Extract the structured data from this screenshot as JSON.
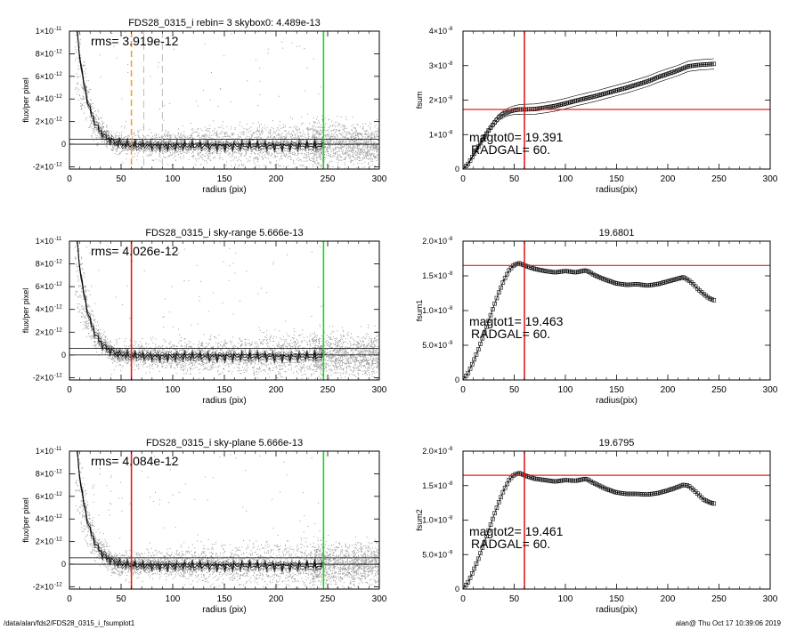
{
  "footer": {
    "left": "/data/alan/fds2/FDS28_0315_i_fsumplot1",
    "right": "alan@  Thu Oct 17 10:39:06 2019"
  },
  "colors": {
    "scatter": "#9a9a9a",
    "profile": "#000000",
    "red": "#e0201a",
    "green": "#19d419",
    "orange": "#f0a040",
    "gray_dash": "#bdbdbd"
  },
  "chart_data": [
    {
      "type": "scatter",
      "title": "FDS28_0315_i rebin= 3    skybox0:  4.489e-13",
      "xlabel": "radius (pix)",
      "ylabel": "flux/per pixel",
      "xlim": [
        0,
        300
      ],
      "ylim": [
        -2.2e-12,
        1e-11
      ],
      "xticks": [
        "0",
        "50",
        "100",
        "150",
        "200",
        "250",
        "300"
      ],
      "yticks": [
        {
          "v": 1e-11,
          "b": "1×10",
          "e": "-11"
        },
        {
          "v": 8e-12,
          "b": "8×10",
          "e": "-12"
        },
        {
          "v": 6e-12,
          "b": "6×10",
          "e": "-12"
        },
        {
          "v": 4e-12,
          "b": "4×10",
          "e": "-12"
        },
        {
          "v": 2e-12,
          "b": "2×10",
          "e": "-12"
        },
        {
          "v": 0,
          "b": "0",
          "e": ""
        },
        {
          "v": -2e-12,
          "b": "-2×10",
          "e": "-12"
        }
      ],
      "annotation": "rms= 3.919e-12",
      "rms": 3.919e-12,
      "hlines": [
        0,
        4.489e-13
      ],
      "vlines": [
        {
          "x": 60,
          "color": "orange",
          "dash": true
        },
        {
          "x": 72,
          "color": "gray_dash",
          "dash": true
        },
        {
          "x": 90,
          "color": "gray_dash",
          "dash": true
        },
        {
          "x": 246,
          "color": "green",
          "dash": false
        }
      ],
      "seed": 11
    },
    {
      "type": "line",
      "title": "",
      "xlabel": "radius(pix)",
      "ylabel": "fsum",
      "xlim": [
        0,
        300
      ],
      "ylim": [
        0,
        4e-08
      ],
      "xticks": [
        "0",
        "50",
        "100",
        "150",
        "200",
        "250",
        "300"
      ],
      "yticks": [
        {
          "v": 4e-08,
          "b": "4×10",
          "e": "-8"
        },
        {
          "v": 3e-08,
          "b": "3×10",
          "e": "-8"
        },
        {
          "v": 2e-08,
          "b": "2×10",
          "e": "-8"
        },
        {
          "v": 1e-08,
          "b": "1×10",
          "e": "-8"
        },
        {
          "v": 0,
          "b": "0",
          "e": ""
        }
      ],
      "annotation_mag": "magtot0=  19.391",
      "annotation_rad": "RADGAL=     60.",
      "vline": 60,
      "hline": 1.73e-08,
      "curve": [
        [
          0,
          0
        ],
        [
          5,
          1.5e-09
        ],
        [
          10,
          4e-09
        ],
        [
          15,
          6.5e-09
        ],
        [
          20,
          9e-09
        ],
        [
          25,
          1.12e-08
        ],
        [
          30,
          1.32e-08
        ],
        [
          35,
          1.5e-08
        ],
        [
          40,
          1.6e-08
        ],
        [
          45,
          1.67e-08
        ],
        [
          50,
          1.71e-08
        ],
        [
          55,
          1.73e-08
        ],
        [
          60,
          1.73e-08
        ],
        [
          70,
          1.74e-08
        ],
        [
          80,
          1.78e-08
        ],
        [
          90,
          1.83e-08
        ],
        [
          100,
          1.9e-08
        ],
        [
          110,
          1.98e-08
        ],
        [
          120,
          2.05e-08
        ],
        [
          130,
          2.12e-08
        ],
        [
          140,
          2.2e-08
        ],
        [
          150,
          2.28e-08
        ],
        [
          160,
          2.36e-08
        ],
        [
          170,
          2.45e-08
        ],
        [
          180,
          2.54e-08
        ],
        [
          190,
          2.66e-08
        ],
        [
          200,
          2.76e-08
        ],
        [
          210,
          2.86e-08
        ],
        [
          220,
          2.98e-08
        ],
        [
          230,
          3.02e-08
        ],
        [
          240,
          3.04e-08
        ],
        [
          245,
          3.05e-08
        ]
      ],
      "spread": 1.5e-09
    },
    {
      "type": "scatter",
      "title": "FDS28_0315_i sky-range  5.666e-13",
      "xlabel": "radius (pix)",
      "ylabel": "flux/per pixel",
      "xlim": [
        0,
        300
      ],
      "ylim": [
        -2.2e-12,
        1e-11
      ],
      "xticks": [
        "0",
        "50",
        "100",
        "150",
        "200",
        "250",
        "300"
      ],
      "yticks": [
        {
          "v": 1e-11,
          "b": "1×10",
          "e": "-11"
        },
        {
          "v": 8e-12,
          "b": "8×10",
          "e": "-12"
        },
        {
          "v": 6e-12,
          "b": "6×10",
          "e": "-12"
        },
        {
          "v": 4e-12,
          "b": "4×10",
          "e": "-12"
        },
        {
          "v": 2e-12,
          "b": "2×10",
          "e": "-12"
        },
        {
          "v": 0,
          "b": "0",
          "e": ""
        },
        {
          "v": -2e-12,
          "b": "-2×10",
          "e": "-12"
        }
      ],
      "annotation": "rms= 4.026e-12",
      "rms": 4.026e-12,
      "hlines": [
        0,
        5.666e-13
      ],
      "vlines": [
        {
          "x": 60,
          "color": "red",
          "dash": false
        },
        {
          "x": 246,
          "color": "green",
          "dash": false
        }
      ],
      "seed": 23
    },
    {
      "type": "line",
      "title": "19.6801",
      "xlabel": "radius(pix)",
      "ylabel": "fsum1",
      "xlim": [
        0,
        300
      ],
      "ylim": [
        0,
        2e-08
      ],
      "xticks": [
        "0",
        "50",
        "100",
        "150",
        "200",
        "250",
        "300"
      ],
      "yticks": [
        {
          "v": 2e-08,
          "b": "2.0×10",
          "e": "-8"
        },
        {
          "v": 1.5e-08,
          "b": "1.5×10",
          "e": "-8"
        },
        {
          "v": 1e-08,
          "b": "1.0×10",
          "e": "-8"
        },
        {
          "v": 5e-09,
          "b": "5.0×10",
          "e": "-9"
        },
        {
          "v": 0,
          "b": "0",
          "e": ""
        }
      ],
      "annotation_mag": "magtot1=  19.463",
      "annotation_rad": "RADGAL=     60.",
      "vline": 60,
      "hline": 1.65e-08,
      "curve": [
        [
          0,
          0
        ],
        [
          5,
          1e-09
        ],
        [
          10,
          2.6e-09
        ],
        [
          15,
          4.4e-09
        ],
        [
          20,
          6.4e-09
        ],
        [
          25,
          8.5e-09
        ],
        [
          30,
          1.06e-08
        ],
        [
          35,
          1.26e-08
        ],
        [
          40,
          1.44e-08
        ],
        [
          45,
          1.58e-08
        ],
        [
          50,
          1.66e-08
        ],
        [
          55,
          1.68e-08
        ],
        [
          60,
          1.65e-08
        ],
        [
          70,
          1.6e-08
        ],
        [
          80,
          1.57e-08
        ],
        [
          90,
          1.55e-08
        ],
        [
          100,
          1.57e-08
        ],
        [
          110,
          1.55e-08
        ],
        [
          120,
          1.58e-08
        ],
        [
          130,
          1.5e-08
        ],
        [
          140,
          1.44e-08
        ],
        [
          150,
          1.39e-08
        ],
        [
          160,
          1.37e-08
        ],
        [
          170,
          1.38e-08
        ],
        [
          180,
          1.36e-08
        ],
        [
          190,
          1.38e-08
        ],
        [
          200,
          1.42e-08
        ],
        [
          210,
          1.46e-08
        ],
        [
          215,
          1.48e-08
        ],
        [
          220,
          1.44e-08
        ],
        [
          225,
          1.38e-08
        ],
        [
          230,
          1.3e-08
        ],
        [
          235,
          1.24e-08
        ],
        [
          240,
          1.18e-08
        ],
        [
          245,
          1.15e-08
        ]
      ],
      "spread": 0
    },
    {
      "type": "scatter",
      "title": "FDS28_0315_i sky-plane  5.666e-13",
      "xlabel": "radius (pix)",
      "ylabel": "flux/per pixel",
      "xlim": [
        0,
        300
      ],
      "ylim": [
        -2.2e-12,
        1e-11
      ],
      "xticks": [
        "0",
        "50",
        "100",
        "150",
        "200",
        "250",
        "300"
      ],
      "yticks": [
        {
          "v": 1e-11,
          "b": "1×10",
          "e": "-11"
        },
        {
          "v": 8e-12,
          "b": "8×10",
          "e": "-12"
        },
        {
          "v": 6e-12,
          "b": "6×10",
          "e": "-12"
        },
        {
          "v": 4e-12,
          "b": "4×10",
          "e": "-12"
        },
        {
          "v": 2e-12,
          "b": "2×10",
          "e": "-12"
        },
        {
          "v": 0,
          "b": "0",
          "e": ""
        },
        {
          "v": -2e-12,
          "b": "-2×10",
          "e": "-12"
        }
      ],
      "annotation": "rms= 4.084e-12",
      "rms": 4.084e-12,
      "hlines": [
        0,
        5.666e-13
      ],
      "vlines": [
        {
          "x": 60,
          "color": "red",
          "dash": false
        },
        {
          "x": 246,
          "color": "green",
          "dash": false
        }
      ],
      "seed": 37
    },
    {
      "type": "line",
      "title": "19.6795",
      "xlabel": "radius(pix)",
      "ylabel": "fsum2",
      "xlim": [
        0,
        300
      ],
      "ylim": [
        0,
        2e-08
      ],
      "xticks": [
        "0",
        "50",
        "100",
        "150",
        "200",
        "250",
        "300"
      ],
      "yticks": [
        {
          "v": 2e-08,
          "b": "2.0×10",
          "e": "-8"
        },
        {
          "v": 1.5e-08,
          "b": "1.5×10",
          "e": "-8"
        },
        {
          "v": 1e-08,
          "b": "1.0×10",
          "e": "-8"
        },
        {
          "v": 5e-09,
          "b": "5.0×10",
          "e": "-9"
        },
        {
          "v": 0,
          "b": "0",
          "e": ""
        }
      ],
      "annotation_mag": "magtot2=  19.461",
      "annotation_rad": "RADGAL=     60.",
      "vline": 60,
      "hline": 1.65e-08,
      "curve": [
        [
          0,
          0
        ],
        [
          5,
          1e-09
        ],
        [
          10,
          2.6e-09
        ],
        [
          15,
          4.4e-09
        ],
        [
          20,
          6.4e-09
        ],
        [
          25,
          8.5e-09
        ],
        [
          30,
          1.06e-08
        ],
        [
          35,
          1.26e-08
        ],
        [
          40,
          1.44e-08
        ],
        [
          45,
          1.58e-08
        ],
        [
          50,
          1.66e-08
        ],
        [
          55,
          1.68e-08
        ],
        [
          60,
          1.65e-08
        ],
        [
          70,
          1.6e-08
        ],
        [
          80,
          1.58e-08
        ],
        [
          90,
          1.56e-08
        ],
        [
          100,
          1.58e-08
        ],
        [
          110,
          1.57e-08
        ],
        [
          120,
          1.6e-08
        ],
        [
          130,
          1.52e-08
        ],
        [
          140,
          1.45e-08
        ],
        [
          150,
          1.4e-08
        ],
        [
          160,
          1.38e-08
        ],
        [
          170,
          1.38e-08
        ],
        [
          180,
          1.37e-08
        ],
        [
          190,
          1.39e-08
        ],
        [
          200,
          1.43e-08
        ],
        [
          210,
          1.48e-08
        ],
        [
          215,
          1.51e-08
        ],
        [
          220,
          1.5e-08
        ],
        [
          225,
          1.44e-08
        ],
        [
          230,
          1.37e-08
        ],
        [
          235,
          1.3e-08
        ],
        [
          240,
          1.26e-08
        ],
        [
          245,
          1.24e-08
        ]
      ],
      "spread": 0
    }
  ]
}
